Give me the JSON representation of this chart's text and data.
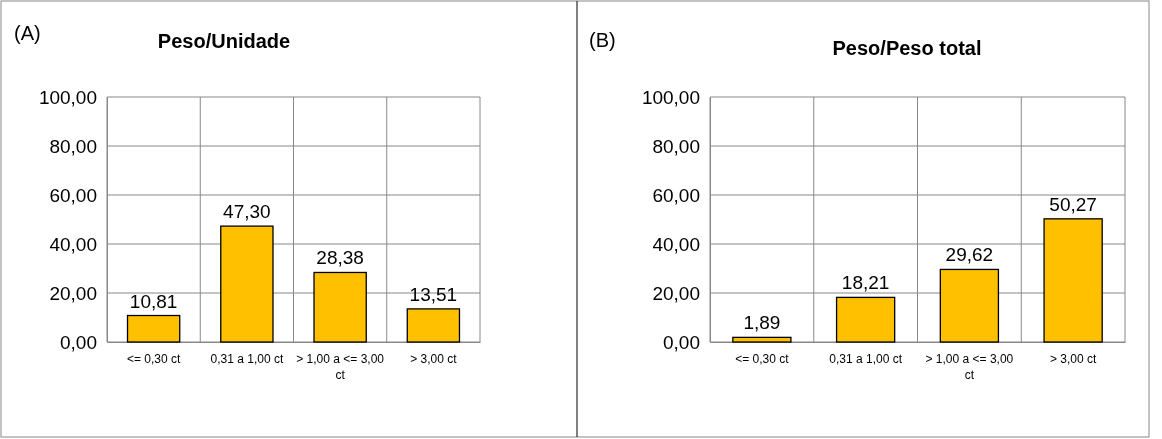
{
  "chart_data": [
    {
      "type": "bar",
      "title": "Peso/Unidade",
      "annotations": [
        "(A)"
      ],
      "categories": [
        "<= 0,30 ct",
        "0,31 a 1,00 ct",
        "> 1,00 a <= 3,00 ct",
        "> 3,00 ct"
      ],
      "values": [
        10.81,
        47.3,
        28.38,
        13.51
      ],
      "value_labels": [
        "10,81",
        "47,30",
        "28,38",
        "13,51"
      ],
      "color": "#ffc000",
      "ylim": [
        0,
        100
      ],
      "yticks": [
        {
          "value": 0,
          "label": "0,00"
        },
        {
          "value": 20,
          "label": "20,00"
        },
        {
          "value": 40,
          "label": "40,00"
        },
        {
          "value": 60,
          "label": "60,00"
        },
        {
          "value": 80,
          "label": "80,00"
        },
        {
          "value": 100,
          "label": "100,00"
        }
      ],
      "grid": true
    },
    {
      "type": "bar",
      "title": "Peso/Peso total",
      "annotations": [
        "(B)"
      ],
      "categories": [
        "<= 0,30 ct",
        "0,31 a 1,00 ct",
        "> 1,00 a <= 3,00 ct",
        "> 3,00 ct"
      ],
      "values": [
        1.89,
        18.21,
        29.62,
        50.27
      ],
      "value_labels": [
        "1,89",
        "18,21",
        "29,62",
        "50,27"
      ],
      "color": "#ffc000",
      "ylim": [
        0,
        100
      ],
      "yticks": [
        {
          "value": 0,
          "label": "0,00"
        },
        {
          "value": 20,
          "label": "20,00"
        },
        {
          "value": 40,
          "label": "40,00"
        },
        {
          "value": 60,
          "label": "60,00"
        },
        {
          "value": 80,
          "label": "80,00"
        },
        {
          "value": 100,
          "label": "100,00"
        }
      ],
      "grid": true
    }
  ]
}
